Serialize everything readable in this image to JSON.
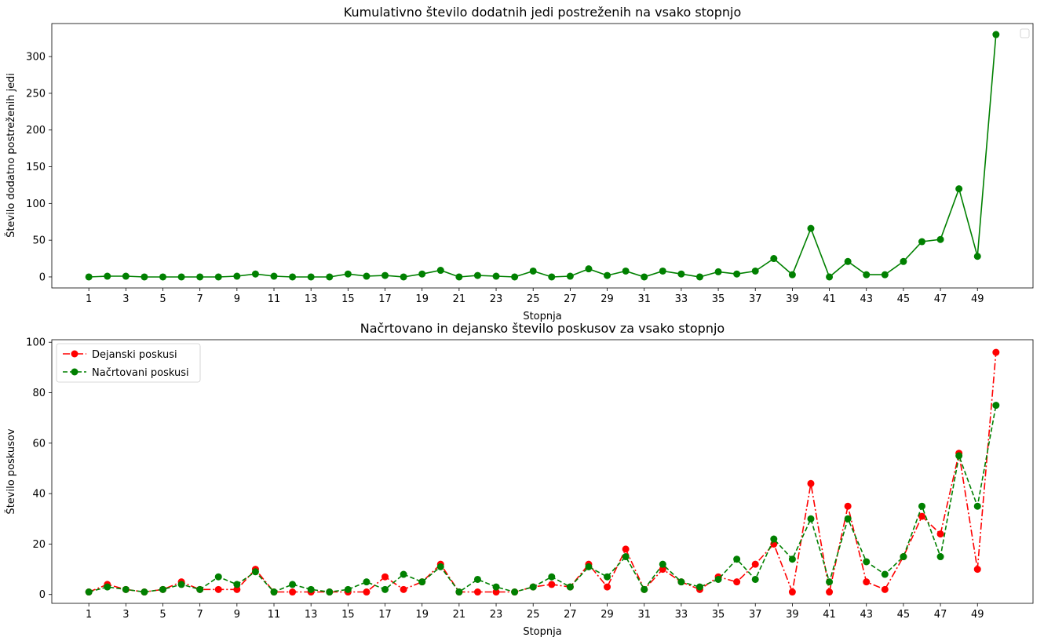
{
  "chart_data": [
    {
      "type": "line",
      "title": "Kumulativno število dodatnih jedi postreženih na vsako stopnjo",
      "xlabel": "Stopnja",
      "ylabel": "Število dodatno postreženih jedi",
      "xlim": [
        -1,
        52
      ],
      "ylim": [
        -15,
        345
      ],
      "x_ticks": [
        1,
        3,
        5,
        7,
        9,
        11,
        13,
        15,
        17,
        19,
        21,
        23,
        25,
        27,
        29,
        31,
        33,
        35,
        37,
        39,
        41,
        43,
        45,
        47,
        49
      ],
      "y_ticks": [
        0,
        50,
        100,
        150,
        200,
        250,
        300
      ],
      "legend": "top-right",
      "x": [
        1,
        2,
        3,
        4,
        5,
        6,
        7,
        8,
        9,
        10,
        11,
        12,
        13,
        14,
        15,
        16,
        17,
        18,
        19,
        20,
        21,
        22,
        23,
        24,
        25,
        26,
        27,
        28,
        29,
        30,
        31,
        32,
        33,
        34,
        35,
        36,
        37,
        38,
        39,
        40,
        41,
        42,
        43,
        44,
        45,
        46,
        47,
        48,
        49,
        50
      ],
      "series": [
        {
          "color": "#008000",
          "line_style": "solid",
          "marker": "circle",
          "values": [
            0,
            1,
            1,
            0,
            0,
            0,
            0,
            0,
            1,
            4,
            1,
            0,
            0,
            0,
            4,
            1,
            2,
            0,
            4,
            9,
            0,
            2,
            1,
            0,
            8,
            0,
            1,
            11,
            2,
            8,
            0,
            8,
            4,
            0,
            7,
            4,
            8,
            25,
            3,
            66,
            0,
            21,
            3,
            3,
            21,
            48,
            51,
            120,
            28,
            330
          ]
        }
      ]
    },
    {
      "type": "line",
      "title": "Načrtovano in dejansko število poskusov za vsako stopnjo",
      "xlabel": "Stopnja",
      "ylabel": "Število poskusov",
      "xlim": [
        -1,
        52
      ],
      "ylim": [
        -3.5,
        101
      ],
      "x_ticks": [
        1,
        3,
        5,
        7,
        9,
        11,
        13,
        15,
        17,
        19,
        21,
        23,
        25,
        27,
        29,
        31,
        33,
        35,
        37,
        39,
        41,
        43,
        45,
        47,
        49
      ],
      "y_ticks": [
        0,
        20,
        40,
        60,
        80,
        100
      ],
      "legend": "top-left",
      "x": [
        1,
        2,
        3,
        4,
        5,
        6,
        7,
        8,
        9,
        10,
        11,
        12,
        13,
        14,
        15,
        16,
        17,
        18,
        19,
        20,
        21,
        22,
        23,
        24,
        25,
        26,
        27,
        28,
        29,
        30,
        31,
        32,
        33,
        34,
        35,
        36,
        37,
        38,
        39,
        40,
        41,
        42,
        43,
        44,
        45,
        46,
        47,
        48,
        49,
        50
      ],
      "series": [
        {
          "name": "Dejanski poskusi",
          "color": "#ff0000",
          "line_style": "dashdot",
          "marker": "circle",
          "values": [
            1,
            4,
            2,
            1,
            2,
            5,
            2,
            2,
            2,
            10,
            1,
            1,
            1,
            1,
            1,
            1,
            7,
            2,
            5,
            12,
            1,
            1,
            1,
            1,
            3,
            4,
            3,
            12,
            3,
            18,
            2,
            10,
            5,
            2,
            7,
            5,
            12,
            20,
            1,
            44,
            1,
            35,
            5,
            2,
            15,
            31,
            24,
            56,
            10,
            96
          ]
        },
        {
          "name": "Načrtovani poskusi",
          "color": "#008000",
          "line_style": "dashed",
          "marker": "circle",
          "values": [
            1,
            3,
            2,
            1,
            2,
            4,
            2,
            7,
            4,
            9,
            1,
            4,
            2,
            1,
            2,
            5,
            2,
            8,
            5,
            11,
            1,
            6,
            3,
            1,
            3,
            7,
            3,
            11,
            7,
            15,
            2,
            12,
            5,
            3,
            6,
            14,
            6,
            22,
            14,
            30,
            5,
            30,
            13,
            8,
            15,
            35,
            15,
            55,
            35,
            75
          ]
        }
      ]
    }
  ]
}
